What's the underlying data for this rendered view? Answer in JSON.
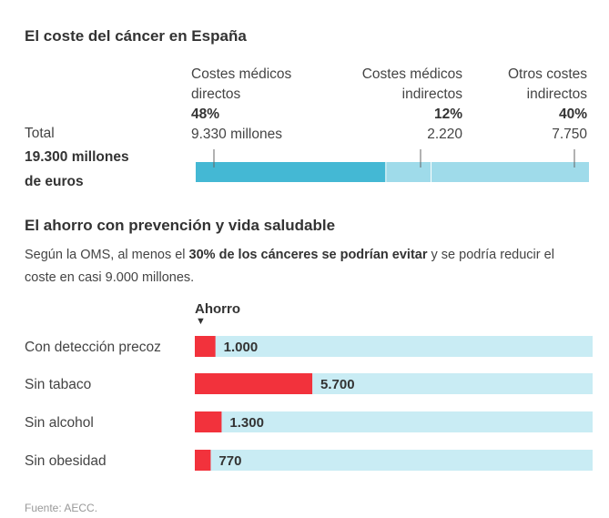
{
  "chart_data": [
    {
      "type": "bar",
      "title": "El coste del cáncer en España",
      "total": {
        "label": "Total",
        "value_line1": "19.300 millones",
        "value_line2": "de euros",
        "value": 19300
      },
      "segments": [
        {
          "name_line1": "Costes médicos",
          "name_line2": "directos",
          "percent": "48%",
          "value_text": "9.330 millones",
          "value": 9330,
          "color": "#44b8d4"
        },
        {
          "name_line1": "Costes médicos",
          "name_line2": "indirectos",
          "percent": "12%",
          "value_text": "2.220",
          "value": 2220,
          "color": "#9fdbea"
        },
        {
          "name_line1": "Otros costes",
          "name_line2": "indirectos",
          "percent": "40%",
          "value_text": "7.750",
          "value": 7750,
          "color": "#9fdbea"
        }
      ]
    },
    {
      "type": "bar",
      "title": "El ahorro con prevención y vida saludable",
      "intro": {
        "before": "Según la OMS, al menos el ",
        "bold": "30% de los cánceres se podrían evitar",
        "after_line1": " y se podría reducir el",
        "line2": "coste en casi 9.000 millones."
      },
      "series_label": "Ahorro",
      "marker": "▼",
      "max": 19300,
      "categories": [
        "Con detección precoz",
        "Sin tabaco",
        "Sin alcohol",
        "Sin obesidad"
      ],
      "values": [
        1000,
        5700,
        1300,
        770
      ],
      "value_labels": [
        "1.000",
        "5.700",
        "1.300",
        "770"
      ],
      "bar_color": "#f2323c",
      "track_color": "#c9ecf4"
    }
  ],
  "source": "Fuente: AECC."
}
